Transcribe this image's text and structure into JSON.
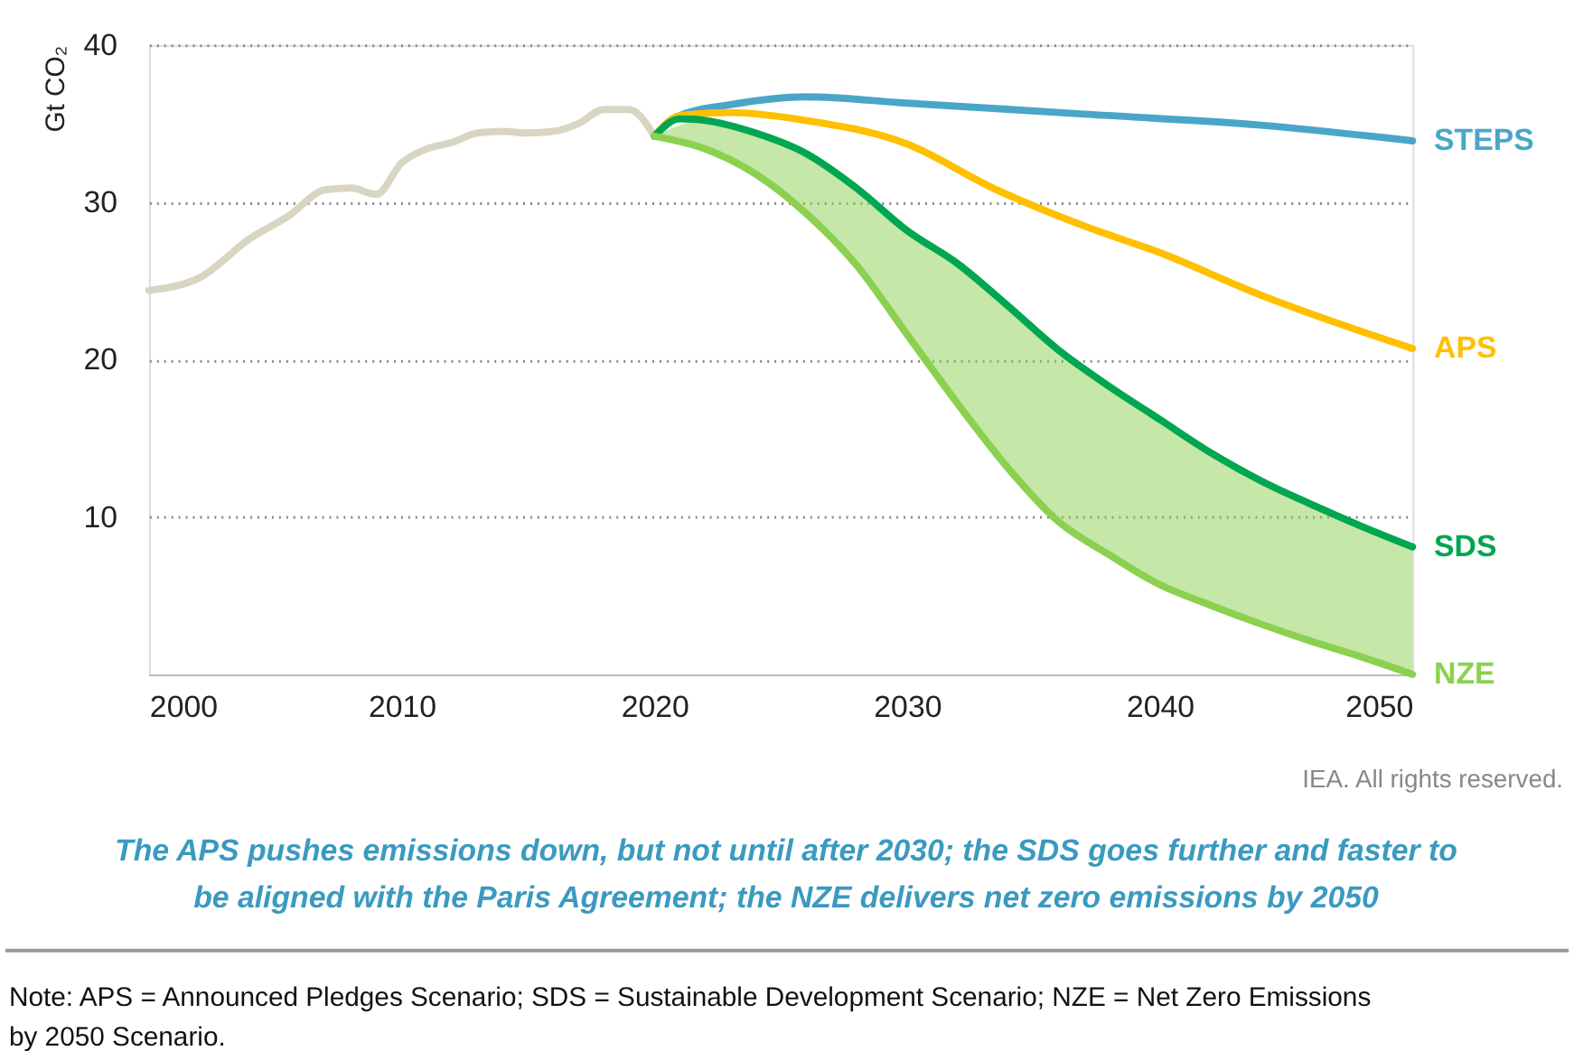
{
  "chart_data": {
    "type": "line",
    "ylabel": "Gt CO₂",
    "xlim": [
      2000,
      2050
    ],
    "ylim": [
      0,
      40
    ],
    "xticks": [
      2000,
      2010,
      2020,
      2030,
      2040,
      2050
    ],
    "yticks": [
      10,
      20,
      30,
      40
    ],
    "grid": "y",
    "series": [
      {
        "color": "#d9d5c3",
        "x": [
          2000,
          2002,
          2004,
          2005.5,
          2007,
          2008,
          2009,
          2010,
          2011,
          2012,
          2013,
          2014,
          2015,
          2016,
          2017,
          2018,
          2019,
          2020
        ],
        "values": [
          24.4,
          25.2,
          27.7,
          29.1,
          30.8,
          30.9,
          30.5,
          32.5,
          33.4,
          33.8,
          34.4,
          34.5,
          34.4,
          34.5,
          35.0,
          35.9,
          35.9,
          34.2
        ]
      },
      {
        "name": "STEPS",
        "color": "#4aa6c8",
        "x": [
          2020,
          2021,
          2023,
          2026,
          2030,
          2037,
          2044,
          2050
        ],
        "values": [
          34.2,
          35.5,
          36.2,
          36.7,
          36.3,
          35.6,
          34.9,
          33.9
        ]
      },
      {
        "name": "APS",
        "color": "#ffc000",
        "x": [
          2020,
          2021,
          2023,
          2026,
          2030,
          2033.4,
          2037,
          2040,
          2044,
          2050
        ],
        "values": [
          34.2,
          35.5,
          35.7,
          35.2,
          33.7,
          30.9,
          28.5,
          26.8,
          24.1,
          20.7
        ]
      },
      {
        "name": "SDS",
        "color": "#00a650",
        "x": [
          2020,
          2021,
          2022,
          2024,
          2026,
          2028,
          2030,
          2032,
          2034,
          2036,
          2038,
          2040,
          2042,
          2044,
          2046,
          2048,
          2050
        ],
        "values": [
          34.2,
          35.3,
          35.2,
          34.4,
          33.1,
          30.9,
          28.2,
          26.1,
          23.4,
          20.6,
          18.3,
          16.2,
          14.1,
          12.3,
          10.8,
          9.4,
          8.1
        ]
      },
      {
        "name": "NZE",
        "color": "#8cd050",
        "x": [
          2020,
          2022,
          2024,
          2026,
          2028,
          2030,
          2032,
          2034,
          2036,
          2038,
          2040,
          2042,
          2044,
          2046,
          2048,
          2050
        ],
        "values": [
          34.2,
          33.4,
          31.8,
          29.3,
          26.0,
          21.6,
          17.2,
          13.1,
          9.7,
          7.6,
          5.7,
          4.4,
          3.2,
          2.1,
          1.1,
          0
        ],
        "lower": [
          34.2,
          33.4,
          31.8,
          29.3,
          26.0,
          21.6,
          17.2,
          13.1,
          9.7,
          7.6,
          5.7,
          4.4,
          3.2,
          2.1,
          1.1,
          0
        ],
        "upper": [
          34.2,
          35.2,
          34.4,
          33.1,
          30.9,
          28.2,
          26.1,
          23.4,
          20.6,
          18.3,
          16.2,
          14.1,
          12.3,
          10.8,
          9.4,
          8.1
        ]
      }
    ],
    "annotations": [
      "IEA. All rights reserved.",
      "The APS pushes emissions down, but not until after 2030; the SDS goes further and faster to be aligned with the Paris Agreement; the NZE delivers net zero emissions by 2050",
      "Note:  APS = Announced Pledges Scenario; SDS = Sustainable Development Scenario; NZE = Net Zero Emissions by 2050 Scenario."
    ]
  }
}
